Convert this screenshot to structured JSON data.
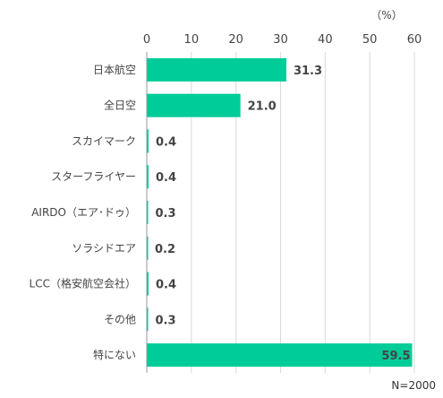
{
  "chart_data": {
    "type": "bar",
    "orientation": "horizontal",
    "unit": "（%）",
    "categories": [
      "日本航空",
      "全日空",
      "スカイマーク",
      "スターフライヤー",
      "AIRDO（エア･ドゥ）",
      "ソラシドエア",
      "LCC（格安航空会社）",
      "その他",
      "特にない"
    ],
    "values": [
      31.3,
      21.0,
      0.4,
      0.4,
      0.3,
      0.2,
      0.4,
      0.3,
      59.5
    ],
    "value_labels": [
      "31.3",
      "21.0",
      "0.4",
      "0.4",
      "0.3",
      "0.2",
      "0.4",
      "0.3",
      "59.5"
    ],
    "xlim": [
      0,
      60
    ],
    "xticks": [
      0,
      10,
      20,
      30,
      40,
      50,
      60
    ],
    "x_axis_position": "top",
    "grid": true,
    "bar_color": "#00cc99",
    "note": "N=2000"
  }
}
